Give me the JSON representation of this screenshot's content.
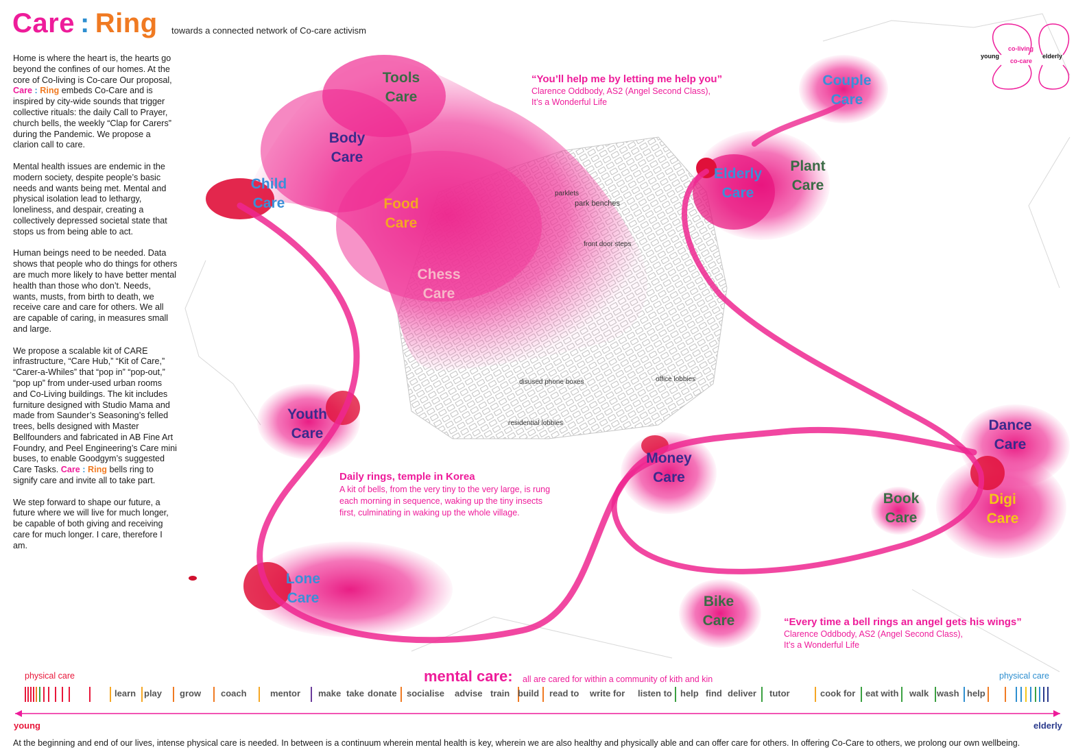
{
  "header": {
    "title_care": "Care",
    "title_colon": ":",
    "title_ring": "Ring",
    "subtitle": "towards a connected network of Co-care activism"
  },
  "intro": {
    "p1_before": "Home is where the heart is, the hearts go beyond the confines of our homes. At the core of Co-living is Co-care Our proposal,",
    "p1_care": "Care",
    "p1_colon": ":",
    "p1_ring": "Ring",
    "p1_after": "embeds Co-Care and is inspired by city-wide sounds that trigger collective rituals: the daily Call to Prayer, church bells, the weekly “Clap for Carers” during the Pandemic. We propose a clarion call to care.",
    "p2": "Mental health issues are endemic in the modern society, despite people’s basic needs and wants being met. Mental and physical isolation lead to lethargy, loneliness, and despair, creating a collectively depressed societal state that stops us from being able to act.",
    "p3": "Human beings need to be needed. Data shows that people who do things for others are much more likely to have better mental health than those who don’t. Needs, wants, musts, from birth to death, we receive care and care for others. We all are capable of caring, in measures small and large.",
    "p4_before": "We propose a scalable kit of CARE infrastructure, “Care Hub,” “Kit of Care,” “Carer-a-Whiles” that “pop in” “pop-out,” “pop up” from under-used urban rooms and Co-Living buildings. The kit includes furniture designed with Studio Mama and made from Saunder’s Seasoning’s felled trees, bells designed with Master Bellfounders and fabricated in AB Fine Art Foundry, and Peel Engineering’s Care mini buses, to enable Goodgym’s suggested Care Tasks.",
    "p4_care": "Care",
    "p4_colon": ":",
    "p4_ring": "Ring",
    "p4_after": "bells ring to signify care and invite all to take part.",
    "p5": "We step forward to shape our future, a future where we will live for much longer, be capable of both giving and receiving care for much longer. I care, therefore I am."
  },
  "care_nodes": [
    {
      "line1": "Tools",
      "line2": "Care",
      "color": "#3a6b45"
    },
    {
      "line1": "Body",
      "line2": "Care",
      "color": "#3b2a8c"
    },
    {
      "line1": "Child",
      "line2": "Care",
      "color": "#3a8fd8"
    },
    {
      "line1": "Food",
      "line2": "Care",
      "color": "#f5a623"
    },
    {
      "line1": "Chess",
      "line2": "Care",
      "color": "#f7b8c8"
    },
    {
      "line1": "Youth",
      "line2": "Care",
      "color": "#3b2a8c"
    },
    {
      "line1": "Lone",
      "line2": "Care",
      "color": "#3a8fd8"
    },
    {
      "line1": "Couple",
      "line2": "Care",
      "color": "#3a8fd8"
    },
    {
      "line1": "Elderly",
      "line2": "Care",
      "color": "#3a8fd8"
    },
    {
      "line1": "Plant",
      "line2": "Care",
      "color": "#3a6b45"
    },
    {
      "line1": "Money",
      "line2": "Care",
      "color": "#3b2a8c"
    },
    {
      "line1": "Dance",
      "line2": "Care",
      "color": "#3b2a8c"
    },
    {
      "line1": "Book",
      "line2": "Care",
      "color": "#3a6b45"
    },
    {
      "line1": "Digi",
      "line2": "Care",
      "color": "#f5c518"
    },
    {
      "line1": "Bike",
      "line2": "Care",
      "color": "#3a6b45"
    }
  ],
  "quotes": {
    "q1": "“You’ll help me by letting me help you”",
    "q1_attr1": "Clarence Oddbody, AS2 (Angel Second Class),",
    "q1_attr2": "It’s a Wonderful Life",
    "q2_title": "Daily rings, temple in Korea",
    "q2_body": "A kit of bells, from the very tiny to the very large, is rung each morning in sequence, waking up the tiny insects first, culminating in waking up the whole village.",
    "q3": "“Every time a bell rings an angel gets his wings”",
    "q3_attr1": "Clarence Oddbody, AS2 (Angel Second Class),",
    "q3_attr2": "It’s a Wonderful Life"
  },
  "map_labels": {
    "parklets": "parklets",
    "park_benches": "park benches",
    "front_door_steps": "front door steps",
    "disused_phone_boxes": "disused phone boxes",
    "office_lobbies": "office lobbies",
    "residential_lobbies": "residential lobbies"
  },
  "legend": {
    "young": "young",
    "coliving": "co-living",
    "cocare": "co-care",
    "elderly": "elderly"
  },
  "spectrum": {
    "physical_left": "physical care",
    "mental_title": "mental care:",
    "mental_sub": "all are cared for within a community of kith and kin",
    "physical_right": "physical care",
    "words": [
      "learn",
      "play",
      "grow",
      "coach",
      "mentor",
      "make",
      "take",
      "donate",
      "socialise",
      "advise",
      "train",
      "build",
      "read to",
      "write for",
      "listen to",
      "help",
      "find",
      "deliver",
      "tutor",
      "cook for",
      "eat with",
      "walk",
      "wash",
      "help"
    ],
    "young": "young",
    "elderly": "elderly"
  },
  "colors": {
    "pink": "#ee1c9a",
    "blob": "#f0339a",
    "blue": "#2e8fd0",
    "orange": "#f07a22",
    "red": "#e8173a"
  },
  "footer": "At the beginning and end of our lives, intense physical care is needed. In between is a continuum wherein mental health is key, wherein we are also healthy and physically able and can offer care for others. In offering Co-Care to others, we prolong our own wellbeing."
}
